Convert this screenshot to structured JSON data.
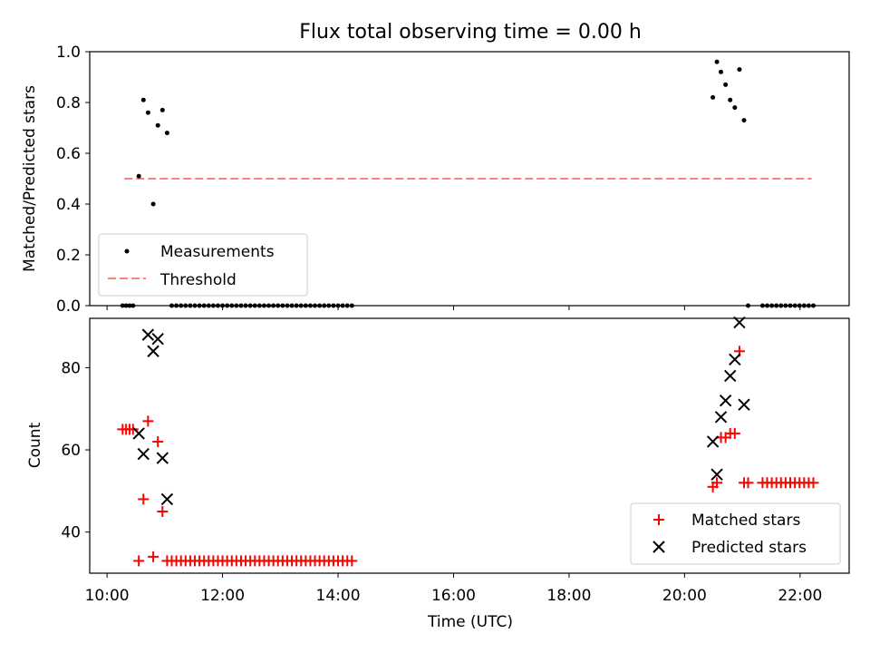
{
  "chart_data": [
    {
      "type": "scatter",
      "title": "Flux total observing time = 0.00 h",
      "xlabel": "",
      "ylabel": "Matched/Predicted stars",
      "xlim": [
        9.7,
        22.85
      ],
      "ylim": [
        0,
        1.0
      ],
      "yticks": [
        0.0,
        0.2,
        0.4,
        0.6,
        0.8,
        1.0
      ],
      "ytick_labels": [
        "0.0",
        "0.2",
        "0.4",
        "0.6",
        "0.8",
        "1.0"
      ],
      "legend_position": "bottom-left",
      "threshold": {
        "name": "Threshold",
        "value": 0.5,
        "x_range": [
          10.3,
          22.2
        ],
        "color": "#ff7f7f",
        "style": "dashed"
      },
      "series": [
        {
          "name": "Measurements",
          "color": "#000000",
          "marker": "dot",
          "points": [
            [
              10.27,
              0
            ],
            [
              10.33,
              0
            ],
            [
              10.39,
              0
            ],
            [
              10.45,
              0
            ],
            [
              10.55,
              0.51
            ],
            [
              10.63,
              0.81
            ],
            [
              10.71,
              0.76
            ],
            [
              10.8,
              0.4
            ],
            [
              10.88,
              0.71
            ],
            [
              10.96,
              0.77
            ],
            [
              11.04,
              0.68
            ],
            [
              11.12,
              0
            ],
            [
              11.2,
              0
            ],
            [
              11.28,
              0
            ],
            [
              11.36,
              0
            ],
            [
              11.44,
              0
            ],
            [
              11.52,
              0
            ],
            [
              11.6,
              0
            ],
            [
              11.68,
              0
            ],
            [
              11.76,
              0
            ],
            [
              11.84,
              0
            ],
            [
              11.92,
              0
            ],
            [
              12.0,
              0
            ],
            [
              12.08,
              0
            ],
            [
              12.16,
              0
            ],
            [
              12.24,
              0
            ],
            [
              12.32,
              0
            ],
            [
              12.4,
              0
            ],
            [
              12.48,
              0
            ],
            [
              12.56,
              0
            ],
            [
              12.64,
              0
            ],
            [
              12.72,
              0
            ],
            [
              12.8,
              0
            ],
            [
              12.88,
              0
            ],
            [
              12.96,
              0
            ],
            [
              13.04,
              0
            ],
            [
              13.12,
              0
            ],
            [
              13.2,
              0
            ],
            [
              13.28,
              0
            ],
            [
              13.36,
              0
            ],
            [
              13.44,
              0
            ],
            [
              13.52,
              0
            ],
            [
              13.6,
              0
            ],
            [
              13.68,
              0
            ],
            [
              13.76,
              0
            ],
            [
              13.84,
              0
            ],
            [
              13.92,
              0
            ],
            [
              14.0,
              0
            ],
            [
              14.08,
              0
            ],
            [
              14.16,
              0
            ],
            [
              14.24,
              0
            ],
            [
              20.49,
              0.82
            ],
            [
              20.56,
              0.96
            ],
            [
              20.63,
              0.92
            ],
            [
              20.71,
              0.87
            ],
            [
              20.79,
              0.81
            ],
            [
              20.87,
              0.78
            ],
            [
              20.95,
              0.93
            ],
            [
              21.03,
              0.73
            ],
            [
              21.1,
              0
            ],
            [
              21.35,
              0
            ],
            [
              21.43,
              0
            ],
            [
              21.51,
              0
            ],
            [
              21.59,
              0
            ],
            [
              21.67,
              0
            ],
            [
              21.75,
              0
            ],
            [
              21.83,
              0
            ],
            [
              21.91,
              0
            ],
            [
              21.99,
              0
            ],
            [
              22.07,
              0
            ],
            [
              22.15,
              0
            ],
            [
              22.23,
              0
            ]
          ]
        }
      ]
    },
    {
      "type": "scatter",
      "title": "",
      "xlabel": "Time (UTC)",
      "ylabel": "Count",
      "xlim": [
        9.7,
        22.85
      ],
      "ylim": [
        30,
        92
      ],
      "xticks": [
        10,
        12,
        14,
        16,
        18,
        20,
        22
      ],
      "xtick_labels": [
        "10:00",
        "12:00",
        "14:00",
        "16:00",
        "18:00",
        "20:00",
        "22:00"
      ],
      "yticks": [
        40,
        60,
        80
      ],
      "ytick_labels": [
        "40",
        "60",
        "80"
      ],
      "legend_position": "bottom-right",
      "series": [
        {
          "name": "Matched stars",
          "color": "#ff0000",
          "marker": "plus",
          "points": [
            [
              10.27,
              65
            ],
            [
              10.33,
              65
            ],
            [
              10.39,
              65
            ],
            [
              10.45,
              65
            ],
            [
              10.55,
              33
            ],
            [
              10.63,
              48
            ],
            [
              10.71,
              67
            ],
            [
              10.8,
              34
            ],
            [
              10.88,
              62
            ],
            [
              10.96,
              45
            ],
            [
              11.04,
              33
            ],
            [
              11.12,
              33
            ],
            [
              11.2,
              33
            ],
            [
              11.28,
              33
            ],
            [
              11.36,
              33
            ],
            [
              11.44,
              33
            ],
            [
              11.52,
              33
            ],
            [
              11.6,
              33
            ],
            [
              11.68,
              33
            ],
            [
              11.76,
              33
            ],
            [
              11.84,
              33
            ],
            [
              11.92,
              33
            ],
            [
              12.0,
              33
            ],
            [
              12.08,
              33
            ],
            [
              12.16,
              33
            ],
            [
              12.24,
              33
            ],
            [
              12.32,
              33
            ],
            [
              12.4,
              33
            ],
            [
              12.48,
              33
            ],
            [
              12.56,
              33
            ],
            [
              12.64,
              33
            ],
            [
              12.72,
              33
            ],
            [
              12.8,
              33
            ],
            [
              12.88,
              33
            ],
            [
              12.96,
              33
            ],
            [
              13.04,
              33
            ],
            [
              13.12,
              33
            ],
            [
              13.2,
              33
            ],
            [
              13.28,
              33
            ],
            [
              13.36,
              33
            ],
            [
              13.44,
              33
            ],
            [
              13.52,
              33
            ],
            [
              13.6,
              33
            ],
            [
              13.68,
              33
            ],
            [
              13.76,
              33
            ],
            [
              13.84,
              33
            ],
            [
              13.92,
              33
            ],
            [
              14.0,
              33
            ],
            [
              14.08,
              33
            ],
            [
              14.16,
              33
            ],
            [
              14.24,
              33
            ],
            [
              20.49,
              51
            ],
            [
              20.56,
              52
            ],
            [
              20.63,
              63
            ],
            [
              20.71,
              63
            ],
            [
              20.79,
              64
            ],
            [
              20.87,
              64
            ],
            [
              20.95,
              84
            ],
            [
              21.03,
              52
            ],
            [
              21.1,
              52
            ],
            [
              21.35,
              52
            ],
            [
              21.43,
              52
            ],
            [
              21.51,
              52
            ],
            [
              21.59,
              52
            ],
            [
              21.67,
              52
            ],
            [
              21.75,
              52
            ],
            [
              21.83,
              52
            ],
            [
              21.91,
              52
            ],
            [
              21.99,
              52
            ],
            [
              22.07,
              52
            ],
            [
              22.15,
              52
            ],
            [
              22.23,
              52
            ]
          ]
        },
        {
          "name": "Predicted stars",
          "color": "#000000",
          "marker": "x",
          "points": [
            [
              10.55,
              64
            ],
            [
              10.63,
              59
            ],
            [
              10.71,
              88
            ],
            [
              10.8,
              84
            ],
            [
              10.88,
              87
            ],
            [
              10.96,
              58
            ],
            [
              11.04,
              48
            ],
            [
              20.49,
              62
            ],
            [
              20.56,
              54
            ],
            [
              20.63,
              68
            ],
            [
              20.71,
              72
            ],
            [
              20.79,
              78
            ],
            [
              20.87,
              82
            ],
            [
              20.95,
              91
            ],
            [
              21.03,
              71
            ]
          ]
        }
      ]
    }
  ]
}
